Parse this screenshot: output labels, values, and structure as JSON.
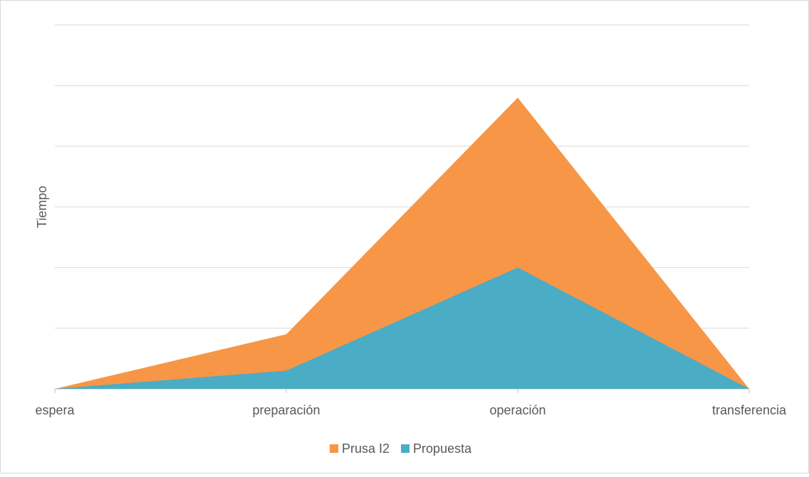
{
  "chart_data": {
    "type": "area",
    "y_label": "Tiempo",
    "categories": [
      "espera",
      "preparación",
      "operación",
      "transferencia"
    ],
    "series": [
      {
        "name": "Prusa I2",
        "color": "#f79646",
        "values": [
          0,
          0.9,
          4.8,
          0
        ]
      },
      {
        "name": "Propuesta",
        "color": "#4bacc6",
        "values": [
          0,
          0.3,
          2.0,
          0
        ]
      }
    ],
    "ylim": [
      0,
      6
    ],
    "yticks": [
      0,
      1,
      2,
      3,
      4,
      5,
      6
    ],
    "grid": true,
    "legend": "bottom"
  }
}
